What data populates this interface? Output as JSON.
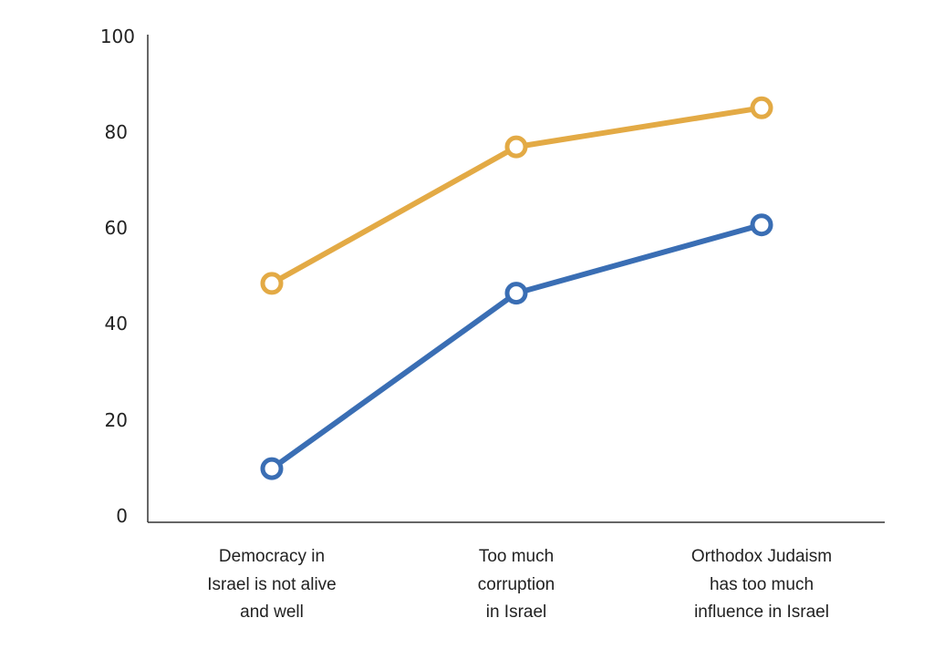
{
  "chart_data": {
    "type": "line",
    "title": "",
    "xlabel": "",
    "ylabel": "",
    "ylim": [
      0,
      100
    ],
    "y_ticks": [
      "0",
      "20",
      "40",
      "60",
      "80",
      "100"
    ],
    "categories": [
      [
        "Democracy in",
        "Israel is not alive",
        "and well"
      ],
      [
        "Too much",
        "corruption",
        "in Israel"
      ],
      [
        "Orthodox Judaism",
        "has too much",
        "influence in Israel"
      ]
    ],
    "series": [
      {
        "color": "#E3AA45",
        "values": [
          49,
          77,
          85
        ]
      },
      {
        "color": "#3A6EB4",
        "values": [
          11,
          47,
          61
        ]
      }
    ],
    "grid": false,
    "legend": "none",
    "markers": "hollow-circle"
  }
}
